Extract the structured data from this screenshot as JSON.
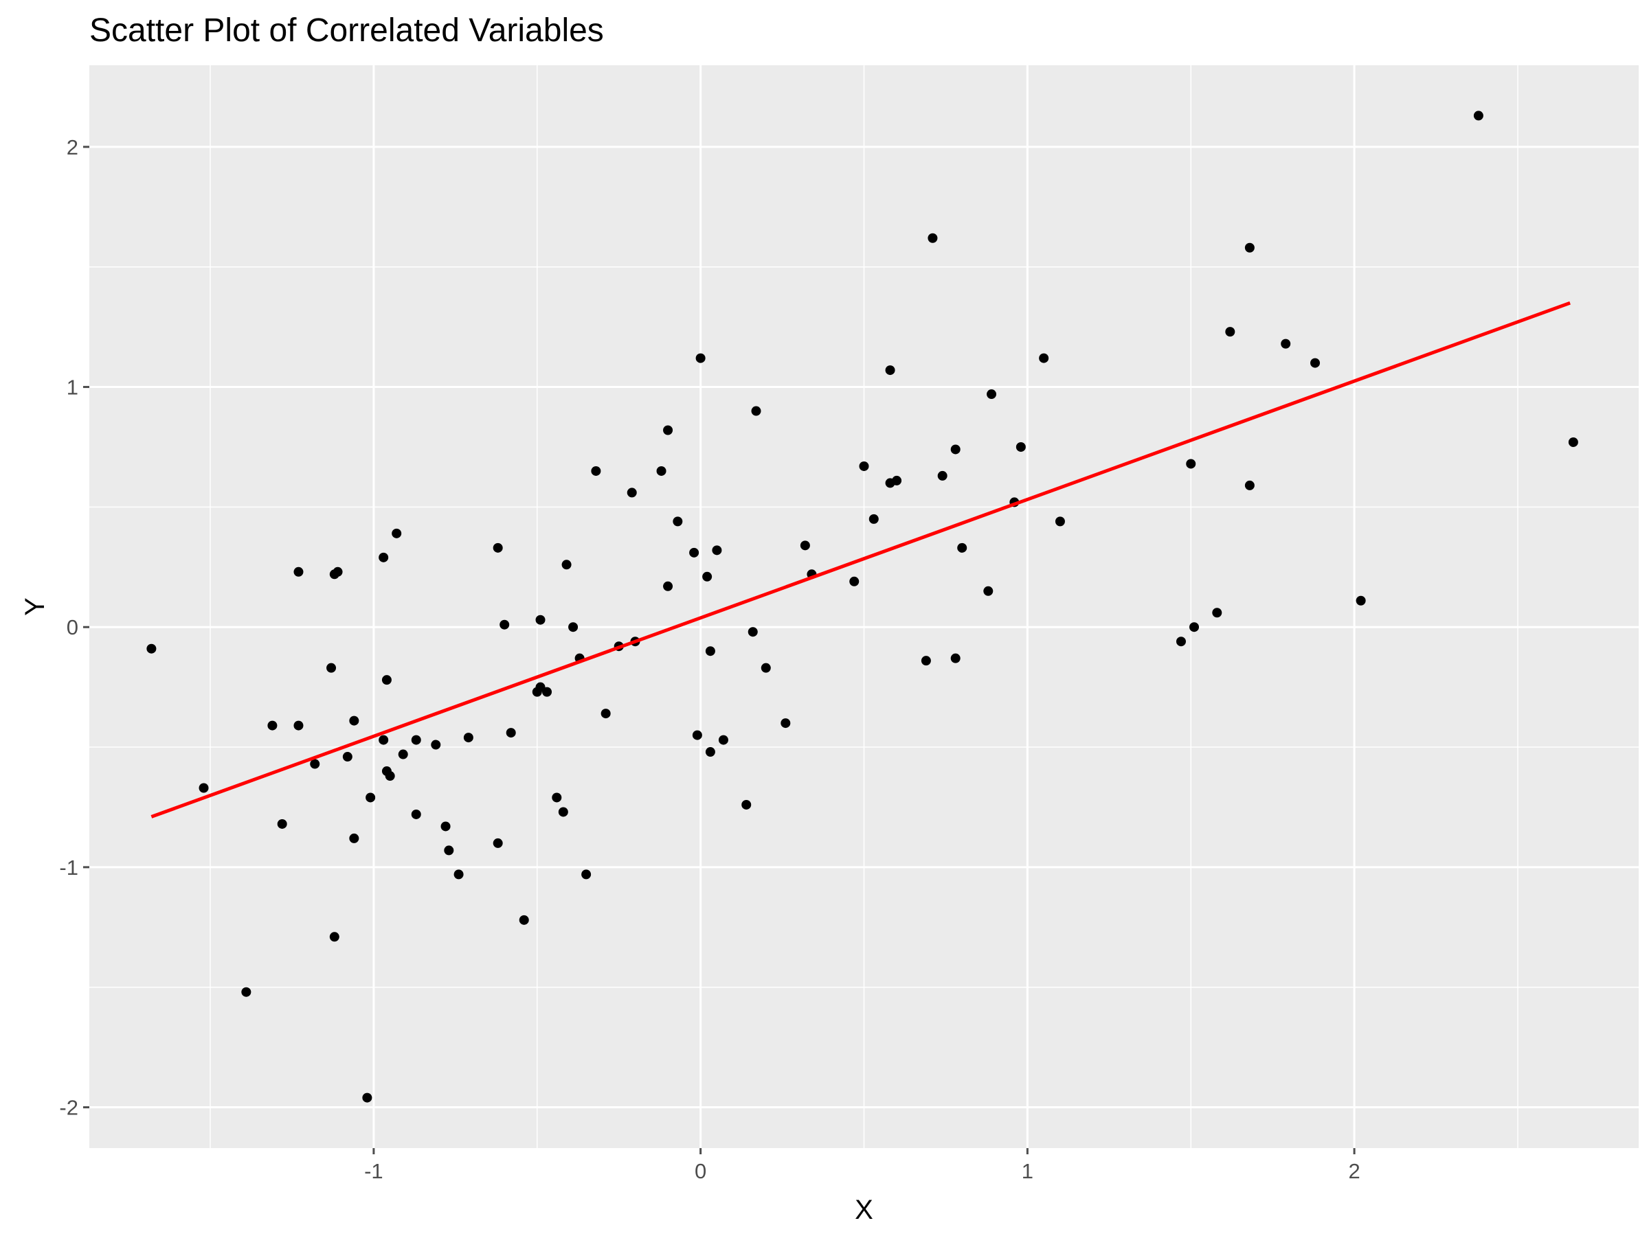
{
  "chart_data": {
    "type": "scatter",
    "title": "Scatter Plot of Correlated Variables",
    "xlabel": "X",
    "ylabel": "Y",
    "xlim": [
      -1.87,
      2.87
    ],
    "ylim": [
      -2.17,
      2.34
    ],
    "x_ticks": [
      -1,
      0,
      1,
      2
    ],
    "y_ticks": [
      -2,
      -1,
      0,
      1,
      2
    ],
    "grid": true,
    "legend": "none",
    "colors": {
      "panel": "#EBEBEB",
      "grid": "#FFFFFF",
      "point": "#000000",
      "fit_line": "#FF0000",
      "tick": "#4D4D4D"
    },
    "points": [
      {
        "x": -1.68,
        "y": -0.09
      },
      {
        "x": -1.52,
        "y": -0.67
      },
      {
        "x": -1.39,
        "y": -1.52
      },
      {
        "x": -1.31,
        "y": -0.41
      },
      {
        "x": -1.28,
        "y": -0.82
      },
      {
        "x": -1.23,
        "y": -0.41
      },
      {
        "x": -1.23,
        "y": 0.23
      },
      {
        "x": -1.18,
        "y": -0.57
      },
      {
        "x": -1.13,
        "y": -0.17
      },
      {
        "x": -1.12,
        "y": 0.22
      },
      {
        "x": -1.11,
        "y": 0.23
      },
      {
        "x": -1.12,
        "y": -1.29
      },
      {
        "x": -1.08,
        "y": -0.54
      },
      {
        "x": -1.06,
        "y": -0.39
      },
      {
        "x": -1.06,
        "y": -0.88
      },
      {
        "x": -1.01,
        "y": -0.71
      },
      {
        "x": -1.02,
        "y": -1.96
      },
      {
        "x": -0.97,
        "y": 0.29
      },
      {
        "x": -0.97,
        "y": -0.47
      },
      {
        "x": -0.96,
        "y": -0.22
      },
      {
        "x": -0.96,
        "y": -0.6
      },
      {
        "x": -0.95,
        "y": -0.62
      },
      {
        "x": -0.93,
        "y": 0.39
      },
      {
        "x": -0.91,
        "y": -0.53
      },
      {
        "x": -0.87,
        "y": -0.47
      },
      {
        "x": -0.87,
        "y": -0.78
      },
      {
        "x": -0.81,
        "y": -0.49
      },
      {
        "x": -0.78,
        "y": -0.83
      },
      {
        "x": -0.77,
        "y": -0.93
      },
      {
        "x": -0.74,
        "y": -1.03
      },
      {
        "x": -0.71,
        "y": -0.46
      },
      {
        "x": -0.62,
        "y": 0.33
      },
      {
        "x": -0.62,
        "y": -0.9
      },
      {
        "x": -0.6,
        "y": 0.01
      },
      {
        "x": -0.58,
        "y": -0.44
      },
      {
        "x": -0.54,
        "y": -1.22
      },
      {
        "x": -0.5,
        "y": -0.27
      },
      {
        "x": -0.49,
        "y": 0.03
      },
      {
        "x": -0.49,
        "y": -0.25
      },
      {
        "x": -0.47,
        "y": -0.27
      },
      {
        "x": -0.44,
        "y": -0.71
      },
      {
        "x": -0.42,
        "y": -0.77
      },
      {
        "x": -0.41,
        "y": 0.26
      },
      {
        "x": -0.39,
        "y": 0.0
      },
      {
        "x": -0.37,
        "y": -0.13
      },
      {
        "x": -0.35,
        "y": -1.03
      },
      {
        "x": -0.32,
        "y": 0.65
      },
      {
        "x": -0.29,
        "y": -0.36
      },
      {
        "x": -0.25,
        "y": -0.08
      },
      {
        "x": -0.21,
        "y": 0.56
      },
      {
        "x": -0.2,
        "y": -0.06
      },
      {
        "x": -0.12,
        "y": 0.65
      },
      {
        "x": -0.1,
        "y": 0.82
      },
      {
        "x": -0.1,
        "y": 0.17
      },
      {
        "x": -0.07,
        "y": 0.44
      },
      {
        "x": -0.02,
        "y": 0.31
      },
      {
        "x": -0.01,
        "y": -0.45
      },
      {
        "x": 0.0,
        "y": 1.12
      },
      {
        "x": 0.02,
        "y": 0.21
      },
      {
        "x": 0.03,
        "y": -0.52
      },
      {
        "x": 0.03,
        "y": -0.1
      },
      {
        "x": 0.05,
        "y": 0.32
      },
      {
        "x": 0.07,
        "y": -0.47
      },
      {
        "x": 0.14,
        "y": -0.74
      },
      {
        "x": 0.16,
        "y": -0.02
      },
      {
        "x": 0.17,
        "y": 0.9
      },
      {
        "x": 0.2,
        "y": -0.17
      },
      {
        "x": 0.26,
        "y": -0.4
      },
      {
        "x": 0.32,
        "y": 0.34
      },
      {
        "x": 0.34,
        "y": 0.22
      },
      {
        "x": 0.47,
        "y": 0.19
      },
      {
        "x": 0.5,
        "y": 0.67
      },
      {
        "x": 0.53,
        "y": 0.45
      },
      {
        "x": 0.58,
        "y": 1.07
      },
      {
        "x": 0.58,
        "y": 0.6
      },
      {
        "x": 0.6,
        "y": 0.61
      },
      {
        "x": 0.69,
        "y": -0.14
      },
      {
        "x": 0.71,
        "y": 1.62
      },
      {
        "x": 0.74,
        "y": 0.63
      },
      {
        "x": 0.78,
        "y": 0.74
      },
      {
        "x": 0.78,
        "y": -0.13
      },
      {
        "x": 0.8,
        "y": 0.33
      },
      {
        "x": 0.88,
        "y": 0.15
      },
      {
        "x": 0.89,
        "y": 0.97
      },
      {
        "x": 0.96,
        "y": 0.52
      },
      {
        "x": 0.98,
        "y": 0.75
      },
      {
        "x": 1.05,
        "y": 1.12
      },
      {
        "x": 1.1,
        "y": 0.44
      },
      {
        "x": 1.47,
        "y": -0.06
      },
      {
        "x": 1.5,
        "y": 0.68
      },
      {
        "x": 1.51,
        "y": 0.0
      },
      {
        "x": 1.58,
        "y": 0.06
      },
      {
        "x": 1.62,
        "y": 1.23
      },
      {
        "x": 1.68,
        "y": 1.58
      },
      {
        "x": 1.68,
        "y": 0.59
      },
      {
        "x": 1.79,
        "y": 1.18
      },
      {
        "x": 1.88,
        "y": 1.1
      },
      {
        "x": 2.02,
        "y": 0.11
      },
      {
        "x": 2.38,
        "y": 2.13
      },
      {
        "x": 2.67,
        "y": 0.77
      }
    ],
    "fit_line": {
      "x": [
        -1.68,
        2.66
      ],
      "y": [
        -0.79,
        1.35
      ]
    }
  }
}
